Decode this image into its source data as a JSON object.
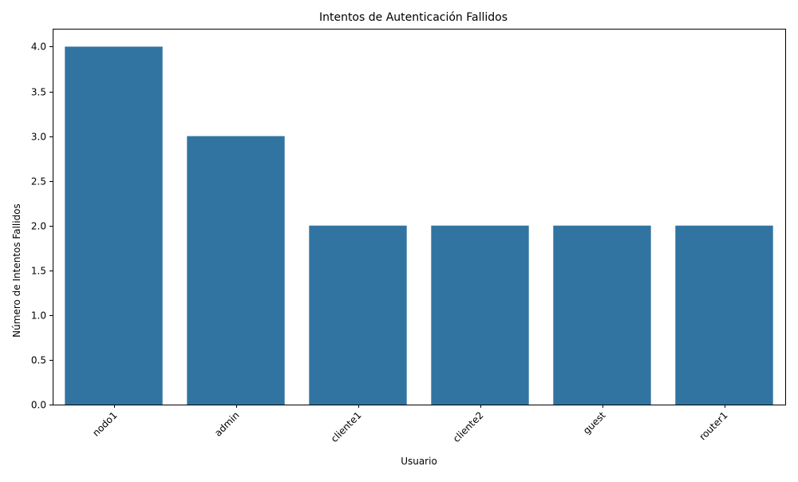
{
  "chart_data": {
    "type": "bar",
    "title": "Intentos de Autenticación Fallidos",
    "xlabel": "Usuario",
    "ylabel": "Número de Intentos Fallidos",
    "categories": [
      "nodo1",
      "admin",
      "cliente1",
      "cliente2",
      "guest",
      "router1"
    ],
    "values": [
      4,
      3,
      2,
      2,
      2,
      2
    ],
    "ylim": [
      0,
      4.2
    ],
    "yticks": [
      "0.0",
      "0.5",
      "1.0",
      "1.5",
      "2.0",
      "2.5",
      "3.0",
      "3.5",
      "4.0"
    ],
    "bar_color": "#3274a1",
    "grid": false,
    "xtick_rotation_deg": 45
  }
}
